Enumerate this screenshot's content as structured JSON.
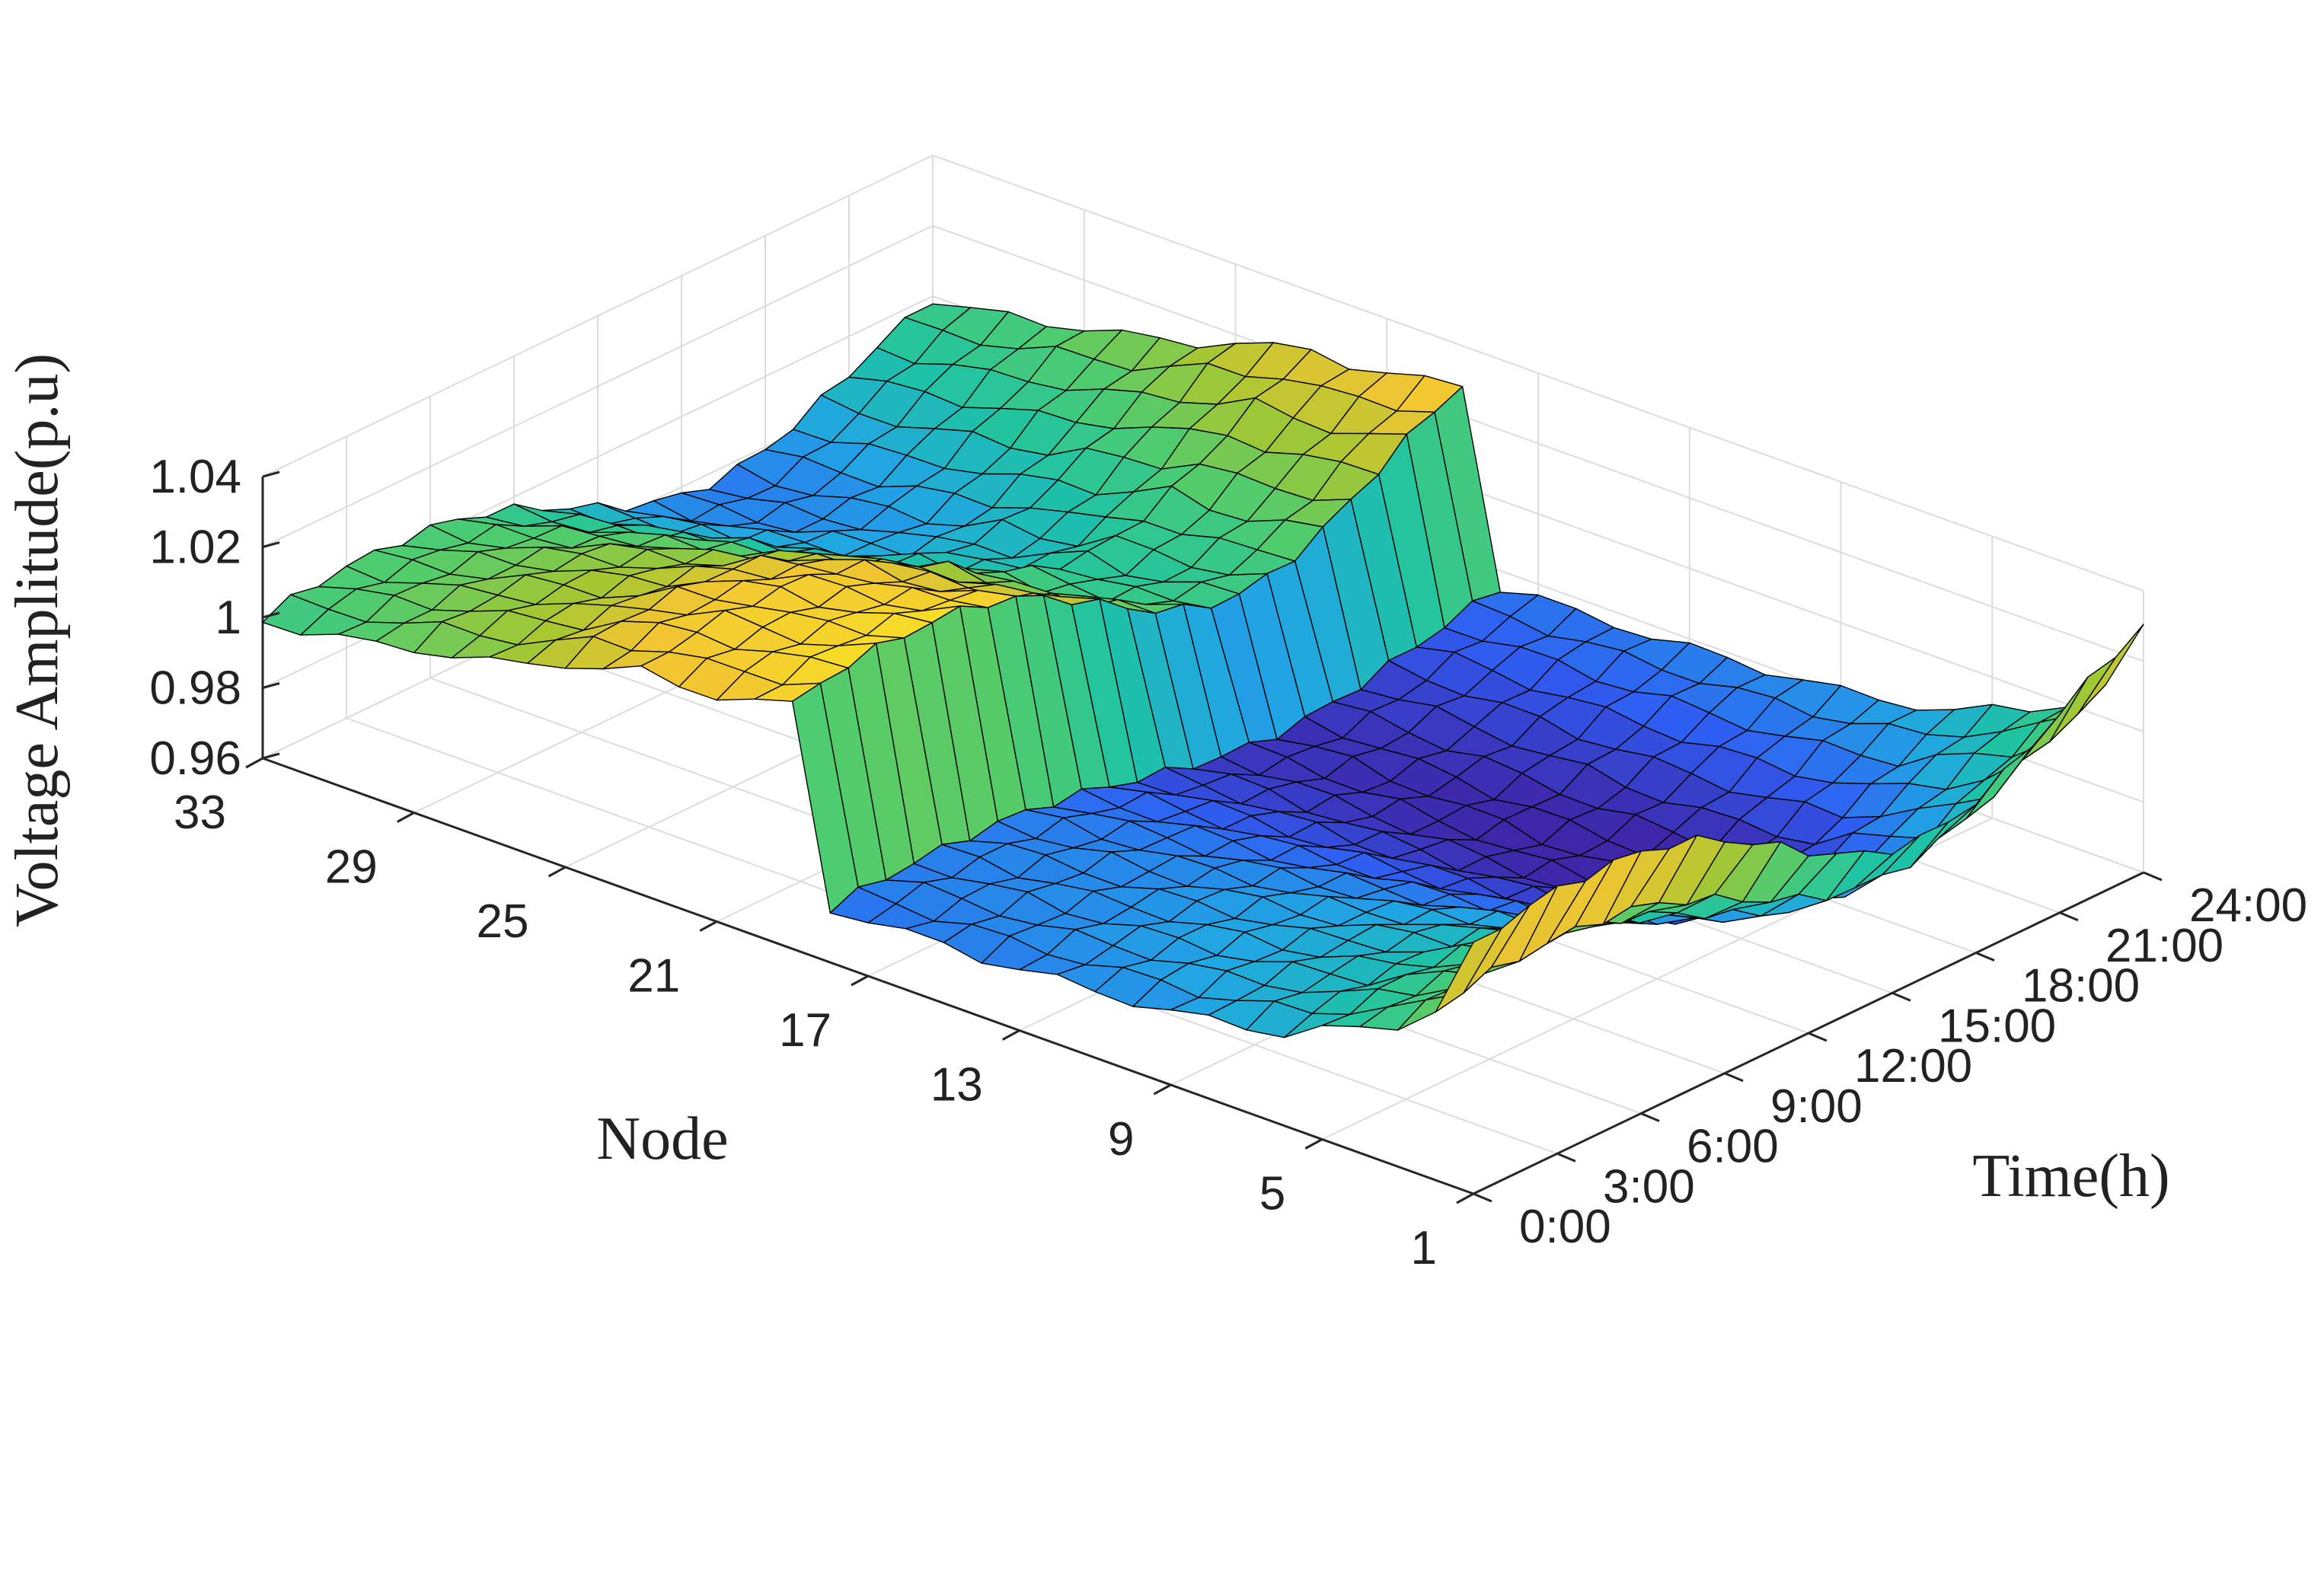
{
  "chart_data": {
    "type": "surface3d",
    "title": "",
    "xlabel": "Node",
    "ylabel": "Time(h)",
    "zlabel": "Voltage Amplitude(p.u)",
    "x_tick_labels": [
      "33",
      "29",
      "25",
      "21",
      "17",
      "13",
      "9",
      "5",
      "1"
    ],
    "y_tick_labels": [
      "0:00",
      "3:00",
      "6:00",
      "9:00",
      "12:00",
      "15:00",
      "18:00",
      "21:00",
      "24:00"
    ],
    "z_tick_labels": [
      "0.96",
      "0.98",
      "1",
      "1.02",
      "1.04"
    ],
    "xlim": [
      1,
      33
    ],
    "ylim": [
      0,
      24
    ],
    "zlim": [
      0.96,
      1.04
    ],
    "grid": true,
    "colormap": "parula",
    "colormap_stops": [
      "#3e26a8",
      "#2f5ef3",
      "#21a6e3",
      "#1ec3a5",
      "#4ecc6f",
      "#a6c732",
      "#f2c532",
      "#f9e324"
    ],
    "edge_color": "#000000",
    "time_values_h": [
      0,
      3,
      6,
      9,
      12,
      15,
      18,
      21,
      24
    ],
    "node_profiles": [
      {
        "nodes": [
          1,
          2,
          3,
          4,
          5,
          6,
          7,
          8,
          9,
          10,
          11,
          12,
          13,
          14,
          15,
          16,
          17,
          18
        ],
        "voltage_offpeak": [
          1.035,
          1.012,
          1.004,
          0.999,
          0.995,
          0.99,
          0.988,
          0.986,
          0.984,
          0.983,
          0.982,
          0.981,
          0.98,
          0.979,
          0.979,
          0.978,
          0.978,
          0.977
        ],
        "voltage_peak": [
          1.0,
          0.985,
          0.977,
          0.972,
          0.968,
          0.963,
          0.962,
          0.961,
          0.961,
          0.961,
          0.961,
          0.962,
          0.962,
          0.963,
          0.963,
          0.964,
          0.964,
          0.964
        ]
      },
      {
        "nodes": [
          19,
          20,
          21,
          22
        ],
        "voltage_offpeak": [
          1.034,
          1.031,
          1.029,
          1.028
        ],
        "voltage_peak": [
          1.0,
          0.998,
          0.996,
          0.995
        ]
      },
      {
        "nodes": [
          23,
          24,
          25
        ],
        "voltage_offpeak": [
          1.028,
          1.025,
          1.023
        ],
        "voltage_peak": [
          0.996,
          0.991,
          0.988
        ]
      },
      {
        "nodes": [
          26,
          27,
          28,
          29,
          30,
          31,
          32,
          33
        ],
        "voltage_offpeak": [
          1.018,
          1.015,
          1.013,
          1.011,
          1.008,
          1.006,
          1.004,
          1.003
        ],
        "voltage_peak": [
          0.988,
          0.984,
          0.982,
          0.981,
          0.979,
          0.978,
          0.977,
          0.977
        ]
      }
    ]
  }
}
